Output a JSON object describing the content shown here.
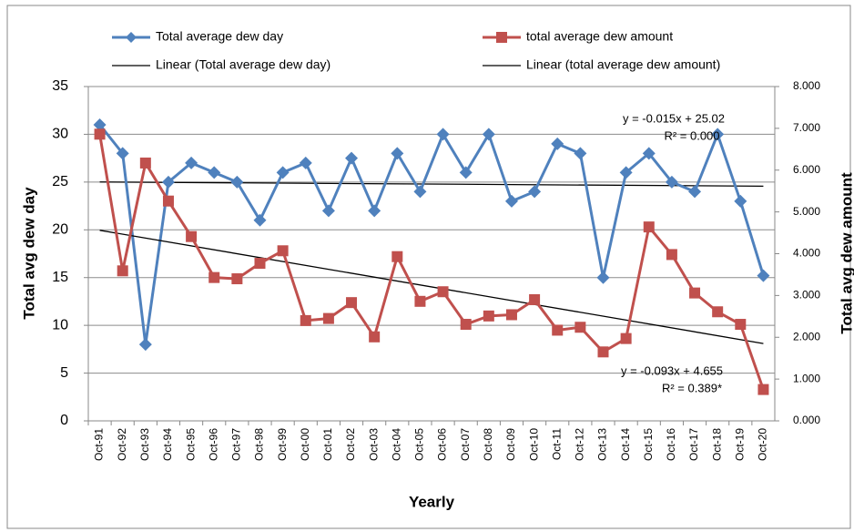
{
  "chart_data": {
    "type": "line",
    "categories": [
      "Oct-91",
      "Oct-92",
      "Oct-93",
      "Oct-94",
      "Oct-95",
      "Oct-96",
      "Oct-97",
      "Oct-98",
      "Oct-99",
      "Oct-00",
      "Oct-01",
      "Oct-02",
      "Oct-03",
      "Oct-04",
      "Oct-05",
      "Oct-06",
      "Oct-07",
      "Oct-08",
      "Oct-09",
      "Oct-10",
      "Oct-11",
      "Oct-12",
      "Oct-13",
      "Oct-14",
      "Oct-15",
      "Oct-16",
      "Oct-17",
      "Oct-18",
      "Oct-19",
      "Oct-20"
    ],
    "series": [
      {
        "name": "Total average dew day",
        "color": "#4f81bd",
        "marker": "diamond",
        "values": [
          31,
          28,
          8,
          25,
          27,
          26,
          25,
          21,
          26,
          27,
          22,
          27.5,
          22,
          28,
          24,
          30,
          26,
          30,
          23,
          24,
          29,
          28,
          15,
          26,
          28,
          25,
          24,
          30,
          23,
          15.2
        ]
      },
      {
        "name": "total average dew amount",
        "color": "#c0504d",
        "marker": "square",
        "axis": "y2",
        "values": [
          6.86,
          3.59,
          6.17,
          5.26,
          4.41,
          3.43,
          3.4,
          3.77,
          4.07,
          2.4,
          2.45,
          2.83,
          2.01,
          3.93,
          2.86,
          3.09,
          2.31,
          2.51,
          2.54,
          2.9,
          2.17,
          2.24,
          1.65,
          1.97,
          4.64,
          3.98,
          3.06,
          2.61,
          2.31,
          0.75
        ]
      }
    ],
    "trendlines": [
      {
        "name": "Linear (Total average dew day)",
        "color": "#000000",
        "equation": "y = -0.015x + 25.02",
        "r2": "R² = 0.000"
      },
      {
        "name": "Linear (total average dew amount)",
        "color": "#000000",
        "equation": "y = -0.093x + 4.655",
        "r2": "R² = 0.389*"
      }
    ],
    "ylabel": "Total avg dew day",
    "y2label": "Total avg dew amount",
    "xlabel": "Yearly",
    "ylim": [
      0,
      35
    ],
    "yticks": [
      0,
      5,
      10,
      15,
      20,
      25,
      30,
      35
    ],
    "y2lim": [
      0,
      8
    ],
    "y2ticks": [
      {
        "value": 0,
        "label": "0.000"
      },
      {
        "value": 1,
        "label": "1.000"
      },
      {
        "value": 2,
        "label": "2.000"
      },
      {
        "value": 3,
        "label": "3.000"
      },
      {
        "value": 4,
        "label": "4.000"
      },
      {
        "value": 5,
        "label": "5.000"
      },
      {
        "value": 6,
        "label": "6.000"
      },
      {
        "value": 7,
        "label": "7.000"
      },
      {
        "value": 8,
        "label": "8.000"
      }
    ],
    "grid": true
  }
}
